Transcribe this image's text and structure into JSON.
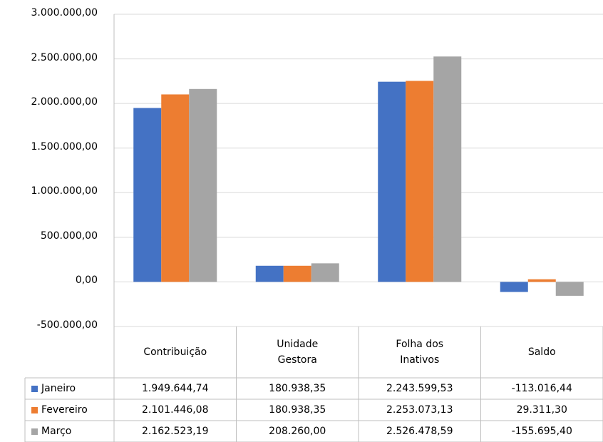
{
  "chart_data": {
    "type": "bar",
    "categories": [
      "Contribuição",
      "Unidade Gestora",
      "Folha dos Inativos",
      "Saldo"
    ],
    "series": [
      {
        "name": "Janeiro",
        "color": "#4472c4",
        "values": [
          1949644.74,
          180938.35,
          2243599.53,
          -113016.44
        ],
        "value_labels": [
          "1.949.644,74",
          "180.938,35",
          "2.243.599,53",
          "-113.016,44"
        ]
      },
      {
        "name": "Fevereiro",
        "color": "#ed7d31",
        "values": [
          2101446.08,
          180938.35,
          2253073.13,
          29311.3
        ],
        "value_labels": [
          "2.101.446,08",
          "180.938,35",
          "2.253.073,13",
          "29.311,30"
        ]
      },
      {
        "name": "Março",
        "color": "#a5a5a5",
        "values": [
          2162523.19,
          208260.0,
          2526478.59,
          -155695.4
        ],
        "value_labels": [
          "2.162.523,19",
          "208.260,00",
          "2.526.478,59",
          "-155.695,40"
        ]
      }
    ],
    "ylim": [
      -500000,
      3000000
    ],
    "yticks": [
      {
        "value": -500000,
        "label": "-500.000,00"
      },
      {
        "value": 0,
        "label": "0,00"
      },
      {
        "value": 500000,
        "label": "500.000,00"
      },
      {
        "value": 1000000,
        "label": "1.000.000,00"
      },
      {
        "value": 1500000,
        "label": "1.500.000,00"
      },
      {
        "value": 2000000,
        "label": "2.000.000,00"
      },
      {
        "value": 2500000,
        "label": "2.500.000,00"
      },
      {
        "value": 3000000,
        "label": "3.000.000,00"
      }
    ],
    "grid": true
  }
}
